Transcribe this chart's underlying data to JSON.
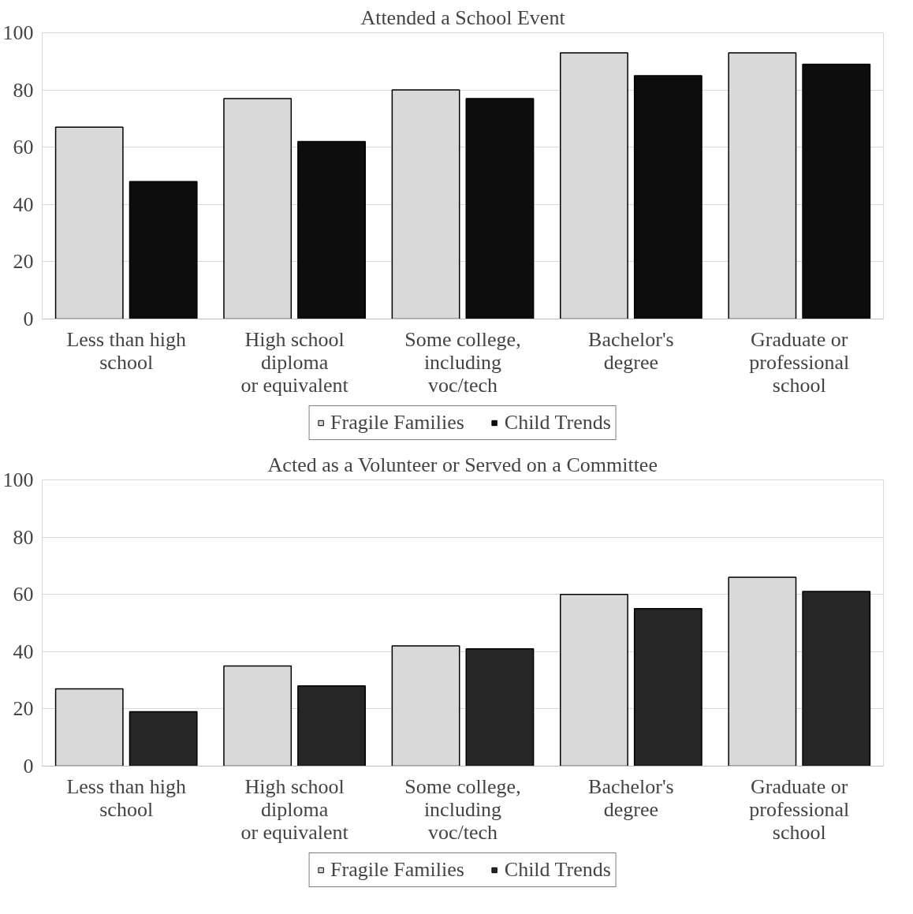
{
  "chart_data": [
    {
      "type": "bar",
      "title": "Attended a School Event",
      "categories": [
        "Less than high\nschool",
        "High school\ndiploma\nor equivalent",
        "Some college,\nincluding\nvoc/tech",
        "Bachelor's\ndegree",
        "Graduate or\nprofessional\nschool"
      ],
      "series": [
        {
          "name": "Fragile Families",
          "color": "#d9d9d9",
          "values": [
            67,
            77,
            80,
            93,
            93
          ]
        },
        {
          "name": "Child Trends",
          "color": "#0d0d0d",
          "values": [
            48,
            62,
            77,
            85,
            89
          ]
        }
      ],
      "ylim": [
        0,
        100
      ],
      "yticks": [
        0,
        20,
        40,
        60,
        80,
        100
      ],
      "grid": "y",
      "legend": "bottom"
    },
    {
      "type": "bar",
      "title": "Acted as a Volunteer or Served on a Committee",
      "categories": [
        "Less than high\nschool",
        "High school\ndiploma\nor equivalent",
        "Some college,\nincluding\nvoc/tech",
        "Bachelor's\ndegree",
        "Graduate or\nprofessional\nschool"
      ],
      "series": [
        {
          "name": "Fragile Families",
          "color": "#d9d9d9",
          "values": [
            27,
            35,
            42,
            60,
            66
          ]
        },
        {
          "name": "Child Trends",
          "color": "#262626",
          "values": [
            19,
            28,
            41,
            55,
            61
          ]
        }
      ],
      "ylim": [
        0,
        100
      ],
      "yticks": [
        0,
        20,
        40,
        60,
        80,
        100
      ],
      "grid": "y",
      "legend": "bottom"
    }
  ]
}
